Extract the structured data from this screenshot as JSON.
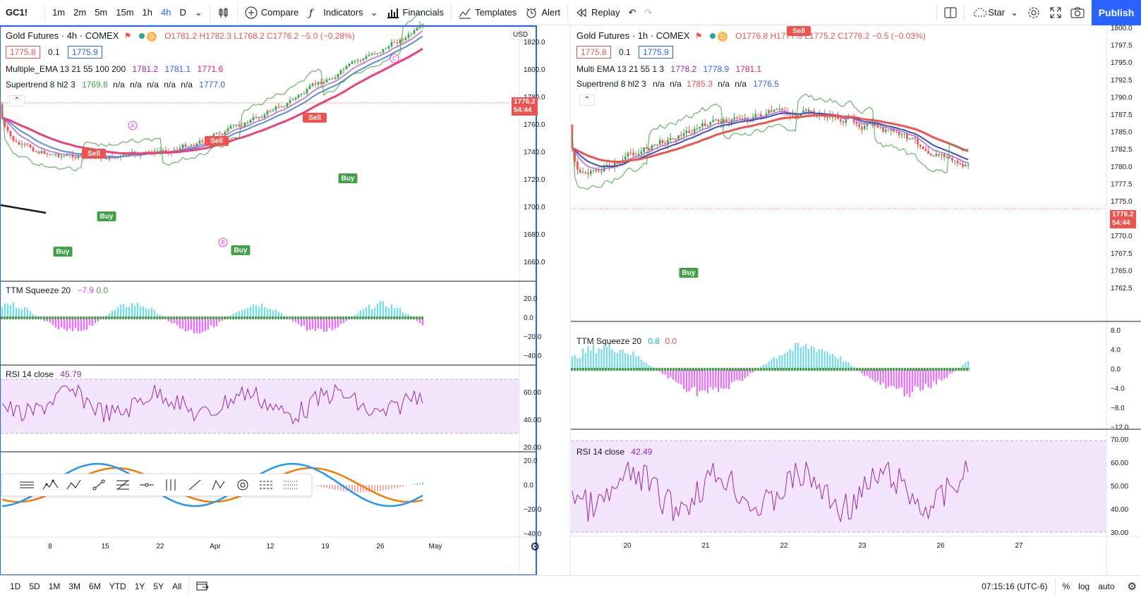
{
  "toolbar": {
    "symbol": "GC1!",
    "timeframes": [
      "1m",
      "2m",
      "5m",
      "15m",
      "1h",
      "4h",
      "D"
    ],
    "active_timeframe": "4h",
    "compare": "Compare",
    "indicators": "Indicators",
    "financials": "Financials",
    "templates": "Templates",
    "alert": "Alert",
    "replay": "Replay",
    "star": "Star",
    "publish": "Publish"
  },
  "left_chart": {
    "title": "Gold Futures · 4h · COMEX",
    "ohlc": "O1781.2 H1782.3 L1768.2 C1776.2 −5.0 (−0.28%)",
    "bid": "1775.8",
    "step": "0.1",
    "ask": "1775.9",
    "ema_label": "Multiple_EMA 13 21 55 100 200",
    "ema_values": [
      "1781.2",
      "1781.1",
      "1771.6"
    ],
    "supertrend_label": "Supertrend 8 hl2 3",
    "supertrend_values": [
      "1769.8",
      "n/a",
      "n/a",
      "n/a",
      "n/a",
      "n/a",
      "1777.0"
    ],
    "currency": "USD",
    "price_ticks": [
      "1820.0",
      "1800.0",
      "1780.0",
      "1760.0",
      "1740.0",
      "1720.0",
      "1700.0",
      "1680.0",
      "1660.0"
    ],
    "last_price": "1776.2",
    "countdown": "54:44",
    "ttm_label": "TTM Squeeze 20",
    "ttm_values": [
      "−7.9",
      "0.0"
    ],
    "ttm_ticks": [
      "20.0",
      "0.0",
      "−20.0",
      "−40.0"
    ],
    "rsi_label": "RSI 14 close",
    "rsi_value": "45.79",
    "rsi_ticks": [
      "60.00",
      "40.00",
      "20.00"
    ],
    "macd_ticks": [
      "20.0",
      "0.0",
      "−20.0",
      "−40.0"
    ],
    "x_ticks": [
      "8",
      "15",
      "22",
      "Apr",
      "12",
      "19",
      "26",
      "May"
    ],
    "buy_label": "Buy",
    "sell_label": "Sell",
    "wave_labels": [
      "A",
      "B",
      "C"
    ]
  },
  "right_chart": {
    "title": "Gold Futures · 1h · COMEX",
    "ohlc": "O1776.8 H1777.6 L1775.2 C1776.2 −0.5 (−0.03%)",
    "bid": "1775.8",
    "step": "0.1",
    "ask": "1775.9",
    "ema_label": "Multi EMA 13 21 55 1 3",
    "ema_values": [
      "1778.2",
      "1778.9",
      "1781.1"
    ],
    "supertrend_label": "Supertrend 8 hl2 3",
    "supertrend_values": [
      "n/a",
      "n/a",
      "1785.3",
      "n/a",
      "n/a",
      "1776.5"
    ],
    "price_ticks": [
      "1800.0",
      "1797.5",
      "1795.0",
      "1792.5",
      "1790.0",
      "1787.5",
      "1785.0",
      "1782.5",
      "1780.0",
      "1777.5",
      "1775.0",
      "1772.5",
      "1770.0",
      "1767.5",
      "1765.0",
      "1762.5"
    ],
    "last_price": "1776.2",
    "countdown": "54:44",
    "ttm_label": "TTM Squeeze 20",
    "ttm_values": [
      "0.8",
      "0.0"
    ],
    "ttm_ticks": [
      "8.0",
      "4.0",
      "0.0",
      "−4.0",
      "−8.0",
      "−12.0"
    ],
    "rsi_label": "RSI 14 close",
    "rsi_value": "42.49",
    "rsi_ticks": [
      "70.00",
      "60.00",
      "50.00",
      "40.00",
      "30.00"
    ],
    "x_ticks": [
      "20",
      "21",
      "22",
      "23",
      "26",
      "27"
    ],
    "buy_label": "Buy",
    "sell_label": "Sell"
  },
  "bottom": {
    "ranges": [
      "1D",
      "5D",
      "1M",
      "3M",
      "6M",
      "YTD",
      "1Y",
      "5Y",
      "All"
    ],
    "time": "07:15:16 (UTC-6)",
    "percent": "%",
    "log": "log",
    "auto": "auto"
  },
  "colors": {
    "accent": "#2962ff",
    "bull": "#43a047",
    "bear": "#ef5350",
    "ema_pink": "#ec407a",
    "ema_blue": "#5b8dd9",
    "ema_purple": "#b26bd4",
    "rsi": "#9c27b0",
    "ttm_cyan": "#4dd0e1",
    "ttm_magenta": "#e040fb"
  }
}
